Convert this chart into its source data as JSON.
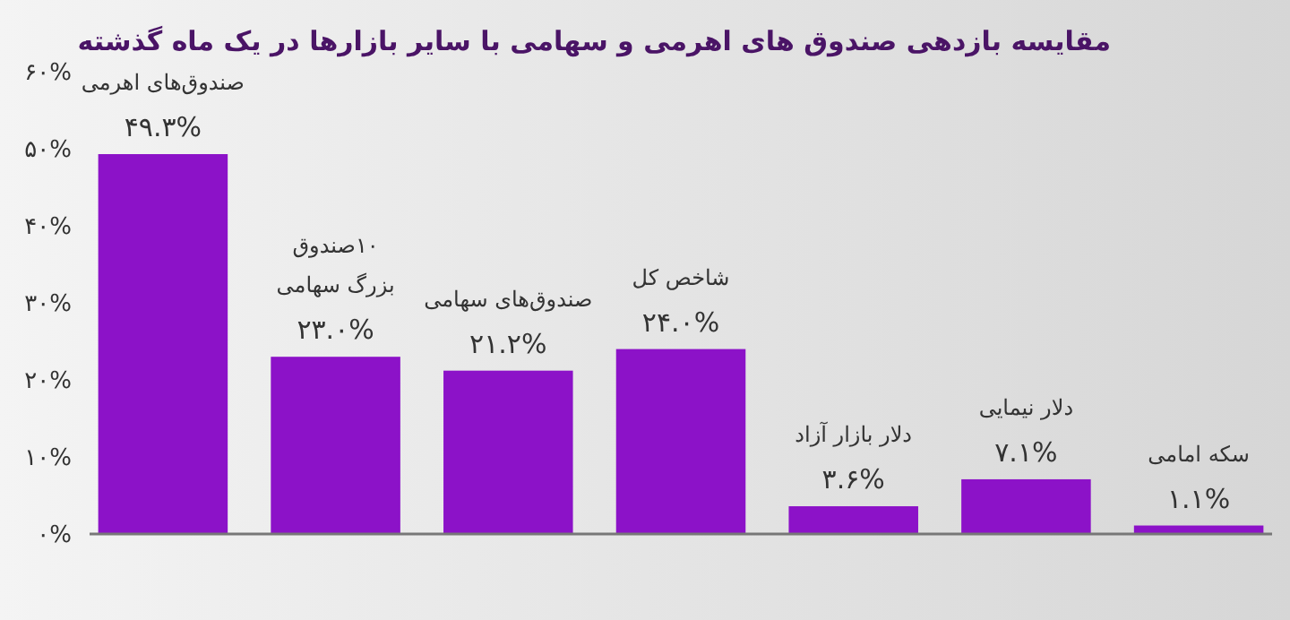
{
  "chart_data": {
    "type": "bar",
    "title": "مقایسه بازدهی صندوق های اهرمی و سهامی با سایر بازارها در یک ماه گذشته",
    "categories": [
      "صندوق‌های اهرمی",
      "۱۰صندوق\nبزرگ سهامی",
      "صندوق‌های سهامی",
      "شاخص کل",
      "دلار بازار آزاد",
      "دلار نیمایی",
      "سکه امامی"
    ],
    "values": [
      49.3,
      23.0,
      21.2,
      24.0,
      3.6,
      7.1,
      1.1
    ],
    "value_labels": [
      "۴۹.۳%",
      "۲۳.۰%",
      "۲۱.۲%",
      "۲۴.۰%",
      "۳.۶%",
      "۷.۱%",
      "۱.۱%"
    ],
    "color": "#8c12c8",
    "ylim": [
      0,
      60
    ],
    "yticks": [
      {
        "value": 0,
        "label": "۰%"
      },
      {
        "value": 10,
        "label": "۱۰%"
      },
      {
        "value": 20,
        "label": "۲۰%"
      },
      {
        "value": 30,
        "label": "۳۰%"
      },
      {
        "value": 40,
        "label": "۴۰%"
      },
      {
        "value": 50,
        "label": "۵۰%"
      },
      {
        "value": 60,
        "label": "۶۰%"
      }
    ],
    "grid": false
  }
}
